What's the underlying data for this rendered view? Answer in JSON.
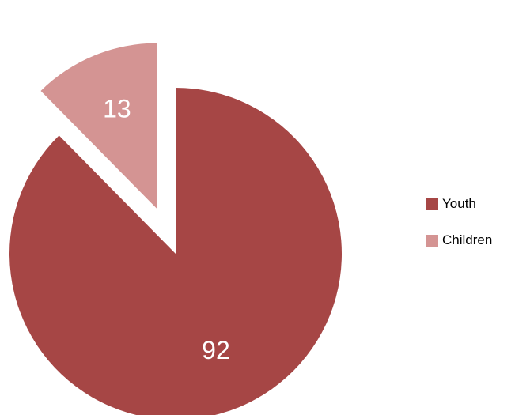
{
  "chart_data": {
    "type": "pie",
    "categories": [
      "Youth",
      "Children"
    ],
    "values": [
      92,
      13
    ],
    "colors": [
      "#a64645",
      "#d49493"
    ],
    "exploded": "Children",
    "legend_position": "right",
    "data_label_color": "#ffffff"
  }
}
